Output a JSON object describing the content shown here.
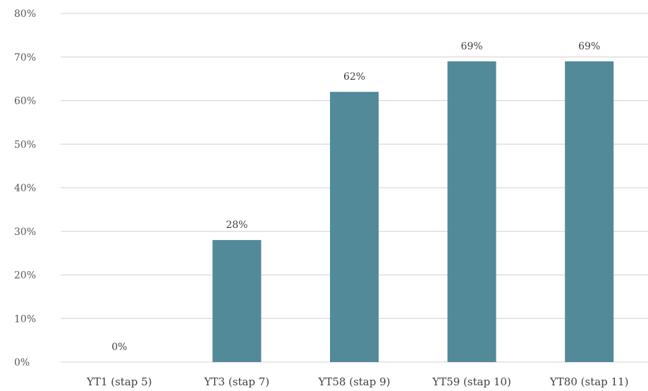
{
  "chart_data": {
    "type": "bar",
    "categories": [
      "YT1 (stap 5)",
      "YT3 (stap 7)",
      "YT58 (stap 9)",
      "YT59 (stap 10)",
      "YT80 (stap 11)"
    ],
    "values": [
      0,
      28,
      62,
      69,
      69
    ],
    "data_labels": [
      "0%",
      "28%",
      "62%",
      "69%",
      "69%"
    ],
    "title": "",
    "xlabel": "",
    "ylabel": "",
    "ylim": [
      0,
      80
    ],
    "yticks": [
      0,
      10,
      20,
      30,
      40,
      50,
      60,
      70,
      80
    ],
    "ytick_labels": [
      "0%",
      "10%",
      "20%",
      "30%",
      "40%",
      "50%",
      "60%",
      "70%",
      "80%"
    ],
    "grid": true,
    "legend": "none",
    "bar_color": "#528a99",
    "gridline_color": "#d9d9d9"
  }
}
